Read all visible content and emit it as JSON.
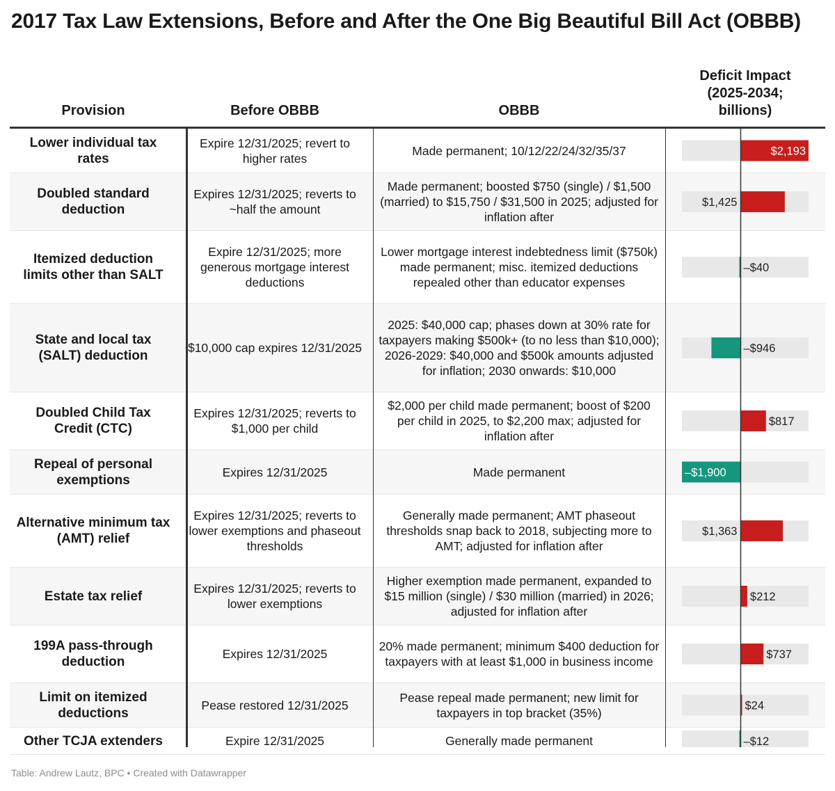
{
  "title": "2017 Tax Law Extensions, Before and After the One Big Beautiful Bill Act (OBBB)",
  "headers": {
    "provision": "Provision",
    "before": "Before OBBB",
    "obbb": "OBBB",
    "impact_l1": "Deficit Impact",
    "impact_l2": "(2025-2034;",
    "impact_l3": "billions)"
  },
  "footer": "Table: Andrew Lautz, BPC • Created with Datawrapper",
  "colors": {
    "positive": "#c71e1d",
    "negative": "#15967d",
    "track": "#e8e8e8",
    "rule": "#333333"
  },
  "chart_data": {
    "type": "table",
    "value_column": "Deficit Impact (2025-2034; billions)",
    "xlim": [
      -1900,
      2193
    ],
    "rows": [
      {
        "provision": "Lower individual tax rates",
        "before": "Expire 12/31/2025; revert to higher rates",
        "obbb": "Made permanent; 10/12/22/24/32/35/37",
        "value": 2193,
        "label": "$2,193"
      },
      {
        "provision": "Doubled standard deduction",
        "before": "Expires 12/31/2025; reverts to ~half the amount",
        "obbb": "Made permanent; boosted $750 (single) / $1,500 (married) to $15,750 / $31,500 in 2025; adjusted for inflation after",
        "value": 1425,
        "label": "$1,425"
      },
      {
        "provision": "Itemized deduction limits other than SALT",
        "before": "Expire 12/31/2025; more generous mortgage interest deductions",
        "obbb": "Lower mortgage interest indebtedness limit ($750k) made permanent; misc. itemized deductions repealed other than educator expenses",
        "value": -40,
        "label": "–$40"
      },
      {
        "provision": "State and local tax (SALT) deduction",
        "before": "$10,000 cap expires 12/31/2025",
        "obbb": "2025: $40,000 cap; phases down at 30% rate for taxpayers making $500k+ (to no less than $10,000); 2026-2029: $40,000 and $500k amounts adjusted for inflation; 2030 onwards: $10,000",
        "value": -946,
        "label": "–$946"
      },
      {
        "provision": "Doubled Child Tax Credit (CTC)",
        "before": "Expires 12/31/2025; reverts to $1,000 per child",
        "obbb": "$2,000 per child made permanent; boost of $200 per child in 2025, to $2,200 max; adjusted for inflation after",
        "value": 817,
        "label": "$817"
      },
      {
        "provision": "Repeal of personal exemptions",
        "before": "Expires 12/31/2025",
        "obbb": "Made permanent",
        "value": -1900,
        "label": "–$1,900"
      },
      {
        "provision": "Alternative minimum tax (AMT) relief",
        "before": "Expires 12/31/2025; reverts to lower exemptions and phaseout thresholds",
        "obbb": "Generally made permanent; AMT phaseout thresholds snap back to 2018, subjecting more to AMT; adjusted for inflation after",
        "value": 1363,
        "label": "$1,363"
      },
      {
        "provision": "Estate tax relief",
        "before": "Expires 12/31/2025; reverts to lower exemptions",
        "obbb": "Higher exemption made permanent, expanded to $15 million (single) / $30 million (married) in 2026; adjusted for inflation after",
        "value": 212,
        "label": "$212"
      },
      {
        "provision": "199A pass-through deduction",
        "before": "Expires 12/31/2025",
        "obbb": "20% made permanent; minimum $400 deduction for taxpayers with at least $1,000 in business income",
        "value": 737,
        "label": "$737"
      },
      {
        "provision": "Limit on itemized deductions",
        "before": "Pease restored 12/31/2025",
        "obbb": "Pease repeal made permanent; new limit for taxpayers in top bracket (35%)",
        "value": 24,
        "label": "$24"
      },
      {
        "provision": "Other TCJA extenders",
        "before": "Expire 12/31/2025",
        "obbb": "Generally made permanent",
        "value": -12,
        "label": "–$12"
      }
    ]
  }
}
